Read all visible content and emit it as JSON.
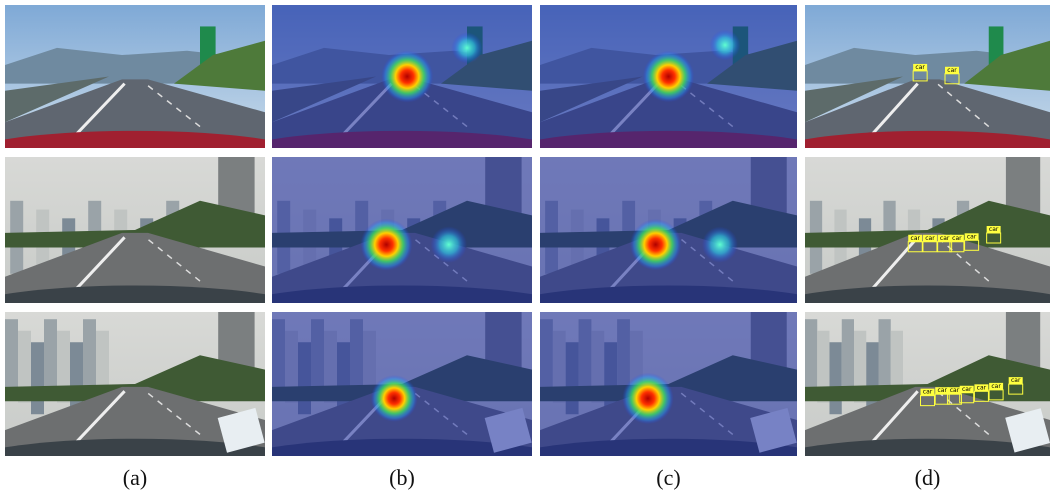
{
  "figure": {
    "captions": [
      "(a)",
      "(b)",
      "(c)",
      "(d)"
    ],
    "detections": [
      [
        "car",
        "car"
      ],
      [
        "car",
        "car",
        "car",
        "car",
        "car",
        "car"
      ],
      [
        "car",
        "car",
        "car",
        "car",
        "car",
        "car",
        "car"
      ]
    ]
  }
}
